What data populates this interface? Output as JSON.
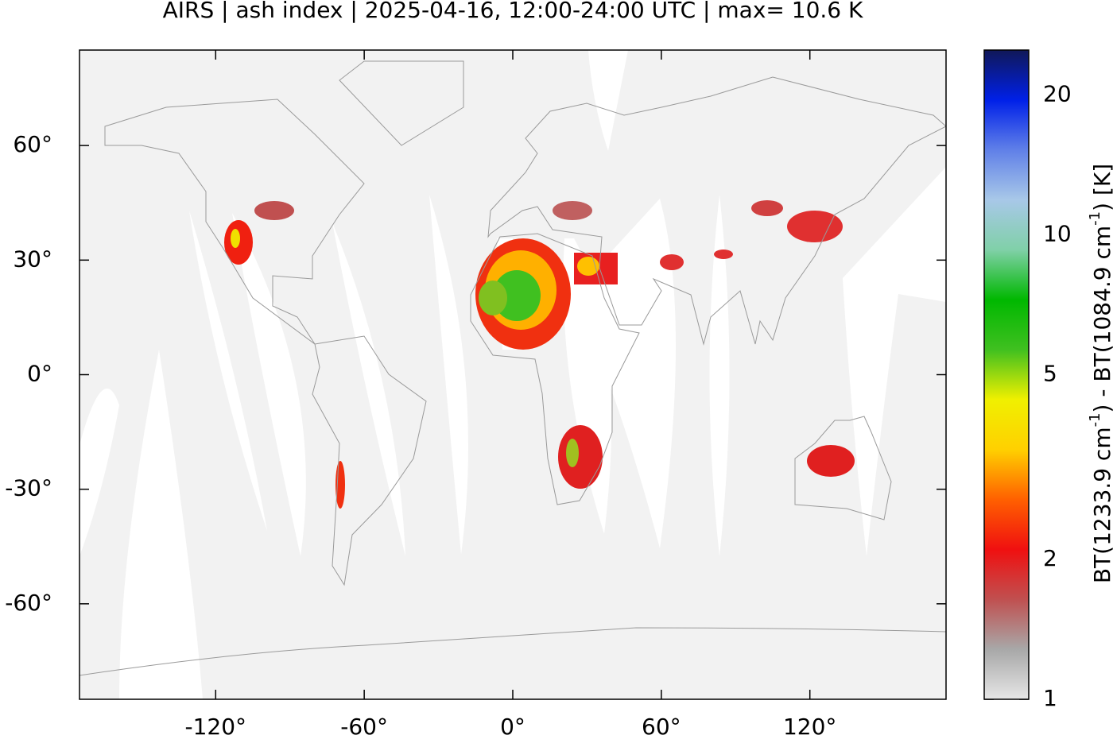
{
  "title": "AIRS | ash index | 2025-04-16, 12:00-24:00 UTC | max= 10.6 K",
  "map": {
    "xlim": [
      -175,
      175
    ],
    "ylim": [
      -85,
      85
    ],
    "xticks": [
      {
        "value": -120,
        "label": "-120°"
      },
      {
        "value": -60,
        "label": "-60°"
      },
      {
        "value": 0,
        "label": "0°"
      },
      {
        "value": 60,
        "label": "60°"
      },
      {
        "value": 120,
        "label": "120°"
      }
    ],
    "yticks": [
      {
        "value": 60,
        "label": "60°"
      },
      {
        "value": 30,
        "label": "30°"
      },
      {
        "value": 0,
        "label": "0°"
      },
      {
        "value": -30,
        "label": "-30°"
      },
      {
        "value": -60,
        "label": "-60°"
      }
    ]
  },
  "colorbar": {
    "label_parts": [
      "BT(1233.9 cm",
      "-1",
      ") - BT(1084.9 cm",
      "-1",
      ") [K]"
    ],
    "lim": [
      1,
      25
    ],
    "log": true,
    "ticks": [
      1,
      2,
      5,
      10,
      20
    ],
    "colormap": [
      "#e6e6e6",
      "#a8a8a8",
      "#c05050",
      "#f01010",
      "#ff6000",
      "#ffd000",
      "#f0f000",
      "#40c020",
      "#00b800",
      "#80d0a8",
      "#a8c8e8",
      "#6080e8",
      "#0020e8",
      "#101858"
    ]
  }
}
